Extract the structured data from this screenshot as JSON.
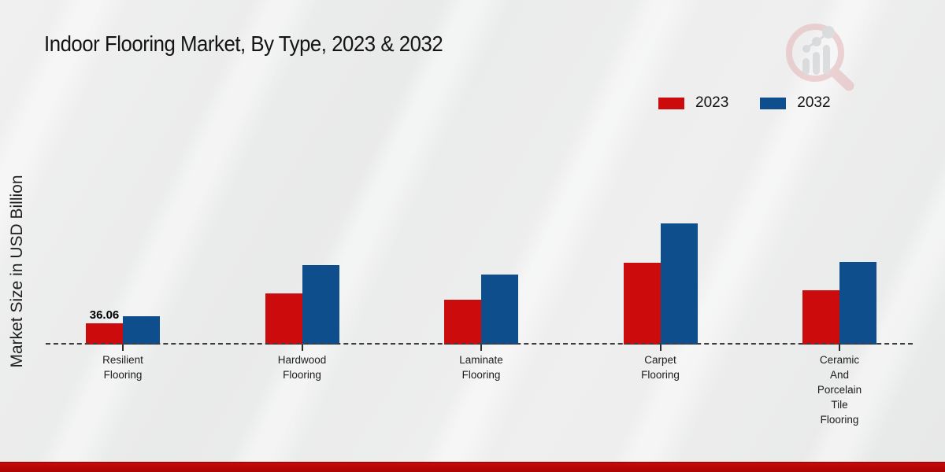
{
  "page": {
    "title": "Indoor Flooring Market, By Type, 2023 & 2032"
  },
  "chart_data": {
    "type": "bar",
    "title": "Indoor Flooring Market, By Type, 2023 & 2032",
    "xlabel": "",
    "ylabel": "Market Size in USD Billion",
    "categories": [
      "Resilient Flooring",
      "Hardwood Flooring",
      "Laminate Flooring",
      "Carpet Flooring",
      "Ceramic And Porcelain Tile Flooring"
    ],
    "categories_display": [
      "Resilient\nFlooring",
      "Hardwood\nFlooring",
      "Laminate\nFlooring",
      "Carpet\nFlooring",
      "Ceramic\nAnd\nPorcelain\nTile\nFlooring"
    ],
    "series": [
      {
        "name": "2023",
        "color": "#cc0b0c",
        "values": [
          36.06,
          86.8,
          76.1,
          138.9,
          92.2
        ]
      },
      {
        "name": "2032",
        "color": "#0f4e8c",
        "values": [
          48.1,
          134.9,
          118.9,
          205.7,
          140.2
        ]
      }
    ],
    "value_labels": [
      {
        "series": "2023",
        "category": "Resilient Flooring",
        "text": "36.06"
      }
    ],
    "ylim": [
      0,
      220
    ],
    "grid": "off",
    "legend_position": "top-right",
    "axis_line_style": "dashed-baseline-only"
  },
  "footer": {
    "accent_color": "#b90707"
  }
}
